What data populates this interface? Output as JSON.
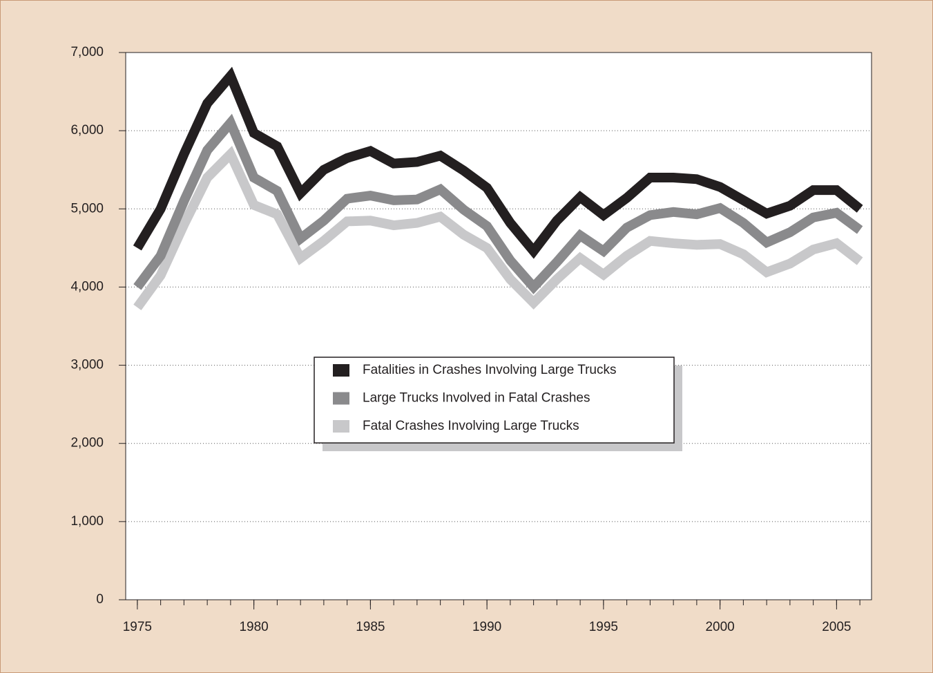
{
  "chart_data": {
    "type": "line",
    "x": [
      1975,
      1976,
      1977,
      1978,
      1979,
      1980,
      1981,
      1982,
      1983,
      1984,
      1985,
      1986,
      1987,
      1988,
      1989,
      1990,
      1991,
      1992,
      1993,
      1994,
      1995,
      1996,
      1997,
      1998,
      1999,
      2000,
      2001,
      2002,
      2003,
      2004,
      2005,
      2006
    ],
    "series": [
      {
        "name": "Fatalities in Crashes Involving Large Trucks",
        "color": "#231f20",
        "values": [
          4500,
          5000,
          5700,
          6350,
          6700,
          5970,
          5800,
          5200,
          5500,
          5650,
          5740,
          5580,
          5600,
          5680,
          5490,
          5270,
          4820,
          4460,
          4850,
          5150,
          4920,
          5140,
          5400,
          5400,
          5380,
          5280,
          5110,
          4940,
          5040,
          5240,
          5240,
          5000
        ]
      },
      {
        "name": "Large Trucks Involved in Fatal Crashes",
        "color": "#8a8a8c",
        "values": [
          4000,
          4400,
          5100,
          5750,
          6100,
          5400,
          5230,
          4620,
          4850,
          5130,
          5170,
          5110,
          5120,
          5250,
          4990,
          4780,
          4340,
          4000,
          4320,
          4660,
          4460,
          4760,
          4920,
          4960,
          4930,
          5010,
          4820,
          4570,
          4700,
          4890,
          4950,
          4730
        ]
      },
      {
        "name": "Fatal Crashes Involving Large Trucks",
        "color": "#c8c8ca",
        "values": [
          3740,
          4150,
          4800,
          5400,
          5700,
          5050,
          4930,
          4370,
          4590,
          4840,
          4850,
          4790,
          4820,
          4900,
          4670,
          4500,
          4100,
          3800,
          4100,
          4370,
          4160,
          4400,
          4590,
          4560,
          4540,
          4550,
          4420,
          4190,
          4300,
          4480,
          4560,
          4330
        ]
      }
    ],
    "xlim": [
      1974.5,
      2006.5
    ],
    "xticks": [
      1975,
      1980,
      1985,
      1990,
      1995,
      2000,
      2005
    ],
    "ylim": [
      0,
      7000
    ],
    "yticks": [
      0,
      {
        "value": 1000,
        "label": "1,000"
      },
      {
        "value": 2000,
        "label": "2,000"
      },
      {
        "value": 3000,
        "label": "3,000"
      },
      {
        "value": 4000,
        "label": "4,000"
      },
      {
        "value": 5000,
        "label": "5,000"
      },
      {
        "value": 6000,
        "label": "6,000"
      },
      {
        "value": 7000,
        "label": "7,000"
      }
    ],
    "grid": true
  }
}
